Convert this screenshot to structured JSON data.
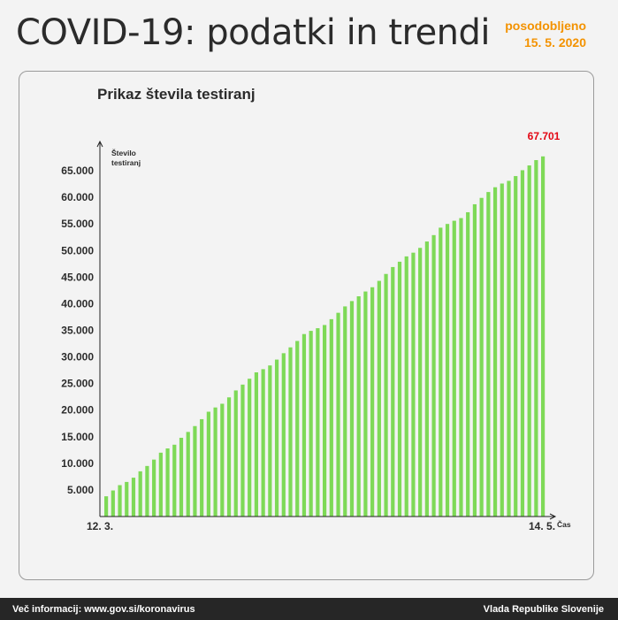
{
  "header": {
    "title": "COVID-19: podatki in trendi",
    "update_label": "posodobljeno",
    "update_date": "15. 5. 2020"
  },
  "footer": {
    "left": "Več informacij: www.gov.si/koronavirus",
    "right": "Vlada Republike Slovenije"
  },
  "colors": {
    "bar": "#7ed957",
    "accent": "#f39200",
    "highlight": "#e30613"
  },
  "chart_data": {
    "type": "bar",
    "title": "Prikaz števila testiranj",
    "ylabel_lines": [
      "Število",
      "testiranj"
    ],
    "xlabel": "Čas",
    "x_start_label": "12. 3.",
    "x_end_label": "14. 5.",
    "ylim": [
      0,
      68500
    ],
    "yticks": [
      5000,
      10000,
      15000,
      20000,
      25000,
      30000,
      35000,
      40000,
      45000,
      50000,
      55000,
      60000,
      65000
    ],
    "ytick_labels": [
      "5.000",
      "10.000",
      "15.000",
      "20.000",
      "25.000",
      "30.000",
      "35.000",
      "40.000",
      "45.000",
      "50.000",
      "55.000",
      "60.000",
      "65.000"
    ],
    "last_value_label": "67.701",
    "grid": false,
    "values": [
      3800,
      4900,
      5900,
      6500,
      7300,
      8500,
      9500,
      10700,
      12000,
      12800,
      13500,
      14800,
      15900,
      17000,
      18300,
      19700,
      20500,
      21200,
      22400,
      23700,
      24800,
      25900,
      27100,
      27700,
      28400,
      29500,
      30700,
      31800,
      33000,
      34300,
      34900,
      35400,
      36000,
      37100,
      38300,
      39500,
      40500,
      41400,
      42300,
      43100,
      44300,
      45600,
      46900,
      47900,
      48900,
      49600,
      50500,
      51700,
      52900,
      54300,
      55000,
      55600,
      56100,
      57200,
      58700,
      59900,
      61000,
      61900,
      62600,
      63100,
      64000,
      65100,
      66000,
      67000,
      67701
    ]
  }
}
